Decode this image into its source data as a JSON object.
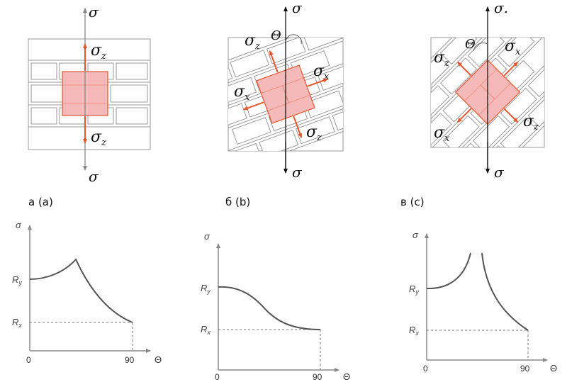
{
  "colors": {
    "accent": "#e8562d",
    "fill": "#f6b9b9",
    "brick": "#9a9a9a",
    "axis": "#888888",
    "curve": "#555555"
  },
  "panels": [
    {
      "caption": "а (а)",
      "sigma_top": "σ",
      "sigma_bottom": "σ",
      "sz_top": "σ",
      "sz_top_sub": "z",
      "sz_bottom": "σ",
      "sz_bottom_sub": "z"
    },
    {
      "caption": "б (b)",
      "sigma_top": "σ",
      "sigma_bottom": "σ",
      "theta": "Θ",
      "sz_top": "σ",
      "sz_top_sub": "z",
      "sx_left": "σ",
      "sx_left_sub": "x",
      "sx_right": "σ",
      "sx_right_sub": "x",
      "sz_bottom": "σ",
      "sz_bottom_sub": "z"
    },
    {
      "caption": "в (с)",
      "sigma_top": "σ.",
      "sigma_bottom": "σ",
      "theta": "Θ",
      "sz_left": "σ",
      "sz_left_sub": "z",
      "sx_right": "σ",
      "sx_right_sub": "x",
      "sx_left": "σ",
      "sx_left_sub": "x",
      "sz_right": "σ",
      "sz_right_sub": "z"
    }
  ],
  "graphs": [
    {
      "ylabel": "σ",
      "ry": "R",
      "ry_sub": "y",
      "rx": "R",
      "rx_sub": "x",
      "x0": "0",
      "x90": "90",
      "xlabel": "Θ"
    },
    {
      "ylabel": "σ",
      "ry": "R",
      "ry_sub": "y",
      "rx": "R",
      "rx_sub": "x",
      "x0": "0",
      "x90": "90",
      "xlabel": "Θ"
    },
    {
      "ylabel": "σ",
      "ry": "R",
      "ry_sub": "y",
      "rx": "R",
      "rx_sub": "x",
      "x0": "0",
      "x90": "90",
      "xlabel": "Θ"
    }
  ]
}
